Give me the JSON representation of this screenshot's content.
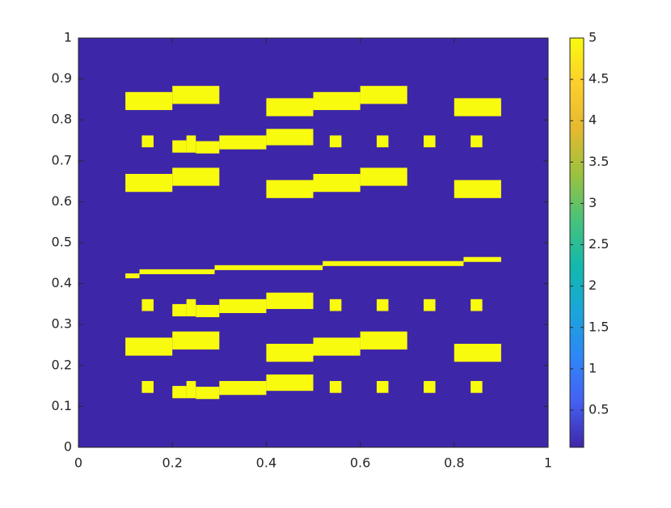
{
  "chart_data": {
    "type": "image",
    "xlim": [
      0,
      1
    ],
    "ylim": [
      0,
      1
    ],
    "xticks": [
      0,
      0.2,
      0.4,
      0.6,
      0.8,
      1
    ],
    "yticks": [
      0,
      0.1,
      0.2,
      0.3,
      0.4,
      0.5,
      0.6,
      0.7,
      0.8,
      0.9,
      1
    ],
    "clim": [
      0.05,
      5
    ],
    "cticks": [
      0.5,
      1,
      1.5,
      2,
      2.5,
      3,
      3.5,
      4,
      4.5,
      5
    ],
    "colormap": [
      "#3e26a8",
      "#4560f3",
      "#2e87f7",
      "#1aa6d9",
      "#12b9ac",
      "#48c27b",
      "#9cc23f",
      "#e5b92f",
      "#fcce2e",
      "#f9fb0e"
    ],
    "background_value": 0.05,
    "fill_value": 5,
    "rects": [
      [
        0.1,
        0.2,
        0.824,
        0.868
      ],
      [
        0.2,
        0.3,
        0.839,
        0.883
      ],
      [
        0.4,
        0.5,
        0.809,
        0.853
      ],
      [
        0.5,
        0.6,
        0.824,
        0.868
      ],
      [
        0.6,
        0.7,
        0.839,
        0.883
      ],
      [
        0.8,
        0.9,
        0.809,
        0.853
      ],
      [
        0.1,
        0.2,
        0.624,
        0.668
      ],
      [
        0.2,
        0.3,
        0.639,
        0.683
      ],
      [
        0.4,
        0.5,
        0.609,
        0.653
      ],
      [
        0.5,
        0.6,
        0.624,
        0.668
      ],
      [
        0.6,
        0.7,
        0.639,
        0.683
      ],
      [
        0.8,
        0.9,
        0.609,
        0.653
      ],
      [
        0.1,
        0.2,
        0.224,
        0.268
      ],
      [
        0.2,
        0.3,
        0.239,
        0.283
      ],
      [
        0.4,
        0.5,
        0.209,
        0.253
      ],
      [
        0.5,
        0.6,
        0.224,
        0.268
      ],
      [
        0.6,
        0.7,
        0.239,
        0.283
      ],
      [
        0.8,
        0.9,
        0.209,
        0.253
      ],
      [
        0.135,
        0.16,
        0.733,
        0.762
      ],
      [
        0.535,
        0.56,
        0.733,
        0.762
      ],
      [
        0.635,
        0.66,
        0.733,
        0.762
      ],
      [
        0.735,
        0.76,
        0.733,
        0.762
      ],
      [
        0.835,
        0.86,
        0.733,
        0.762
      ],
      [
        0.2,
        0.23,
        0.72,
        0.75
      ],
      [
        0.23,
        0.25,
        0.72,
        0.762
      ],
      [
        0.25,
        0.3,
        0.718,
        0.748
      ],
      [
        0.3,
        0.4,
        0.728,
        0.762
      ],
      [
        0.4,
        0.5,
        0.738,
        0.778
      ],
      [
        0.135,
        0.16,
        0.333,
        0.362
      ],
      [
        0.535,
        0.56,
        0.333,
        0.362
      ],
      [
        0.635,
        0.66,
        0.333,
        0.362
      ],
      [
        0.735,
        0.76,
        0.333,
        0.362
      ],
      [
        0.835,
        0.86,
        0.333,
        0.362
      ],
      [
        0.2,
        0.23,
        0.32,
        0.35
      ],
      [
        0.23,
        0.25,
        0.32,
        0.362
      ],
      [
        0.25,
        0.3,
        0.318,
        0.348
      ],
      [
        0.3,
        0.4,
        0.328,
        0.362
      ],
      [
        0.4,
        0.5,
        0.338,
        0.378
      ],
      [
        0.135,
        0.16,
        0.133,
        0.162
      ],
      [
        0.535,
        0.56,
        0.133,
        0.162
      ],
      [
        0.635,
        0.66,
        0.133,
        0.162
      ],
      [
        0.735,
        0.76,
        0.133,
        0.162
      ],
      [
        0.835,
        0.86,
        0.133,
        0.162
      ],
      [
        0.2,
        0.23,
        0.12,
        0.15
      ],
      [
        0.23,
        0.25,
        0.12,
        0.162
      ],
      [
        0.25,
        0.3,
        0.118,
        0.148
      ],
      [
        0.3,
        0.4,
        0.128,
        0.162
      ],
      [
        0.4,
        0.5,
        0.138,
        0.178
      ],
      [
        0.1,
        0.13,
        0.413,
        0.425
      ],
      [
        0.13,
        0.29,
        0.423,
        0.435
      ],
      [
        0.29,
        0.52,
        0.433,
        0.445
      ],
      [
        0.52,
        0.82,
        0.443,
        0.455
      ],
      [
        0.82,
        0.9,
        0.453,
        0.465
      ]
    ]
  }
}
